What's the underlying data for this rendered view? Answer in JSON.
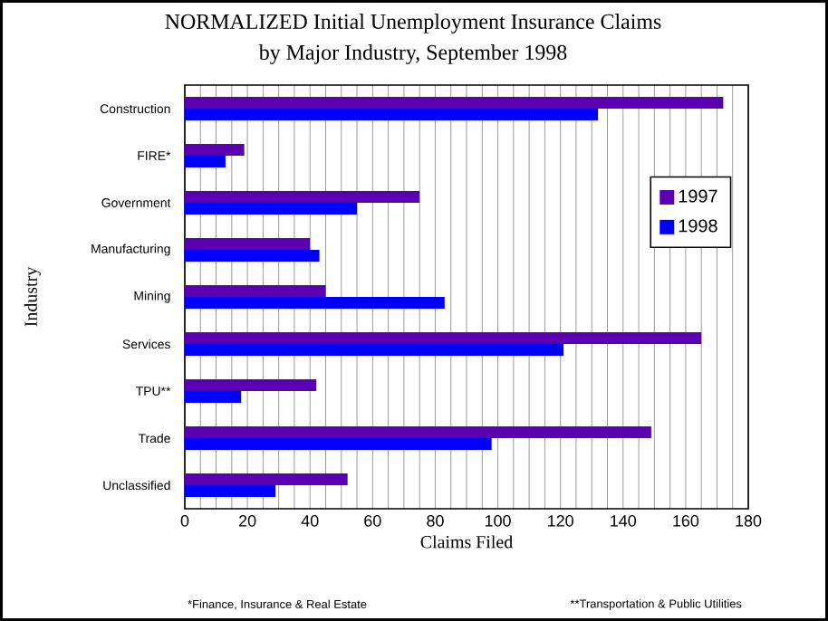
{
  "chart_data": {
    "type": "bar",
    "orientation": "horizontal",
    "title": "NORMALIZED Initial Unemployment Insurance Claims",
    "subtitle": "by Major Industry, September 1998",
    "xlabel": "Claims Filed",
    "ylabel": "Industry",
    "categories": [
      "Construction",
      "FIRE*",
      "Government",
      "Manufacturing",
      "Mining",
      "Services",
      "TPU**",
      "Trade",
      "Unclassified"
    ],
    "series": [
      {
        "name": "1997",
        "color": "#5a00b0",
        "values": [
          172,
          19,
          75,
          40,
          45,
          165,
          42,
          149,
          52
        ]
      },
      {
        "name": "1998",
        "color": "#0000ff",
        "values": [
          132,
          13,
          55,
          43,
          83,
          121,
          18,
          98,
          29
        ]
      }
    ],
    "xlim": [
      0,
      180
    ],
    "xticks": [
      0,
      20,
      40,
      60,
      80,
      100,
      120,
      140,
      160,
      180
    ],
    "grid": "x",
    "legend": "right",
    "annotations": [
      "*Finance, Insurance & Real Estate",
      "**Transportation & Public Utilities"
    ]
  }
}
